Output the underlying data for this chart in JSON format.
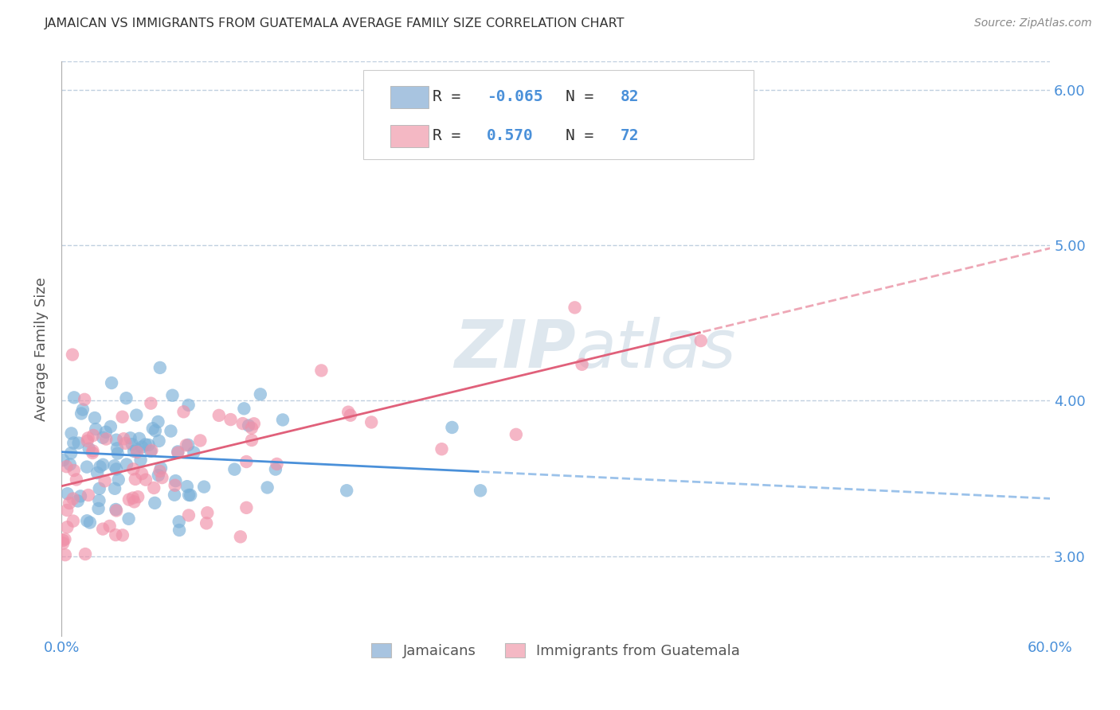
{
  "title": "JAMAICAN VS IMMIGRANTS FROM GUATEMALA AVERAGE FAMILY SIZE CORRELATION CHART",
  "source": "Source: ZipAtlas.com",
  "ylabel": "Average Family Size",
  "yticks": [
    3.0,
    4.0,
    5.0,
    6.0
  ],
  "xlim": [
    0.0,
    0.6
  ],
  "ylim": [
    2.48,
    6.18
  ],
  "watermark_zip": "ZIP",
  "watermark_atlas": "atlas",
  "legend_entries": [
    {
      "color": "#a8c4e0",
      "R_text": "-0.065",
      "N_text": "82"
    },
    {
      "color": "#f4b8c4",
      "R_text": "0.570",
      "N_text": "72"
    }
  ],
  "series": [
    {
      "name": "Jamaicans",
      "dot_color": "#7ab0d8",
      "line_color": "#4a90d9",
      "R": -0.065,
      "N": 82,
      "intercept": 3.67,
      "slope": -0.5
    },
    {
      "name": "Immigrants from Guatemala",
      "dot_color": "#f090a8",
      "line_color": "#e0607a",
      "R": 0.57,
      "N": 72,
      "intercept": 3.45,
      "slope": 2.55
    }
  ],
  "background_color": "#ffffff",
  "grid_color": "#c0d0e0",
  "title_color": "#333333",
  "axis_tick_color": "#4a90d9",
  "ylabel_color": "#555555"
}
